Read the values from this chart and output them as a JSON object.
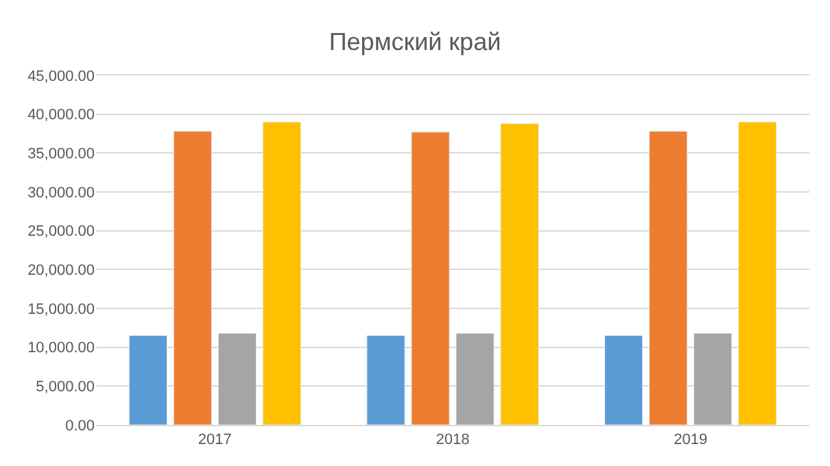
{
  "chart_data": {
    "type": "bar",
    "title": "Пермский край",
    "categories": [
      "2017",
      "2018",
      "2019"
    ],
    "series": [
      {
        "color": "#5b9bd5",
        "values": [
          11500,
          11500,
          11500
        ]
      },
      {
        "color": "#ed7d31",
        "values": [
          37800,
          37700,
          37800
        ]
      },
      {
        "color": "#a5a5a5",
        "values": [
          11800,
          11800,
          11800
        ]
      },
      {
        "color": "#ffc000",
        "values": [
          39000,
          38800,
          39000
        ]
      }
    ],
    "ylim": [
      0,
      45000
    ],
    "yticks": [
      {
        "value": 0,
        "label": "0.00"
      },
      {
        "value": 5000,
        "label": "5,000.00"
      },
      {
        "value": 10000,
        "label": "10,000.00"
      },
      {
        "value": 15000,
        "label": "15,000.00"
      },
      {
        "value": 20000,
        "label": "20,000.00"
      },
      {
        "value": 25000,
        "label": "25,000.00"
      },
      {
        "value": 30000,
        "label": "30,000.00"
      },
      {
        "value": 35000,
        "label": "35,000.00"
      },
      {
        "value": 40000,
        "label": "40,000.00"
      },
      {
        "value": 45000,
        "label": "45,000.00"
      }
    ],
    "grid": "y"
  }
}
